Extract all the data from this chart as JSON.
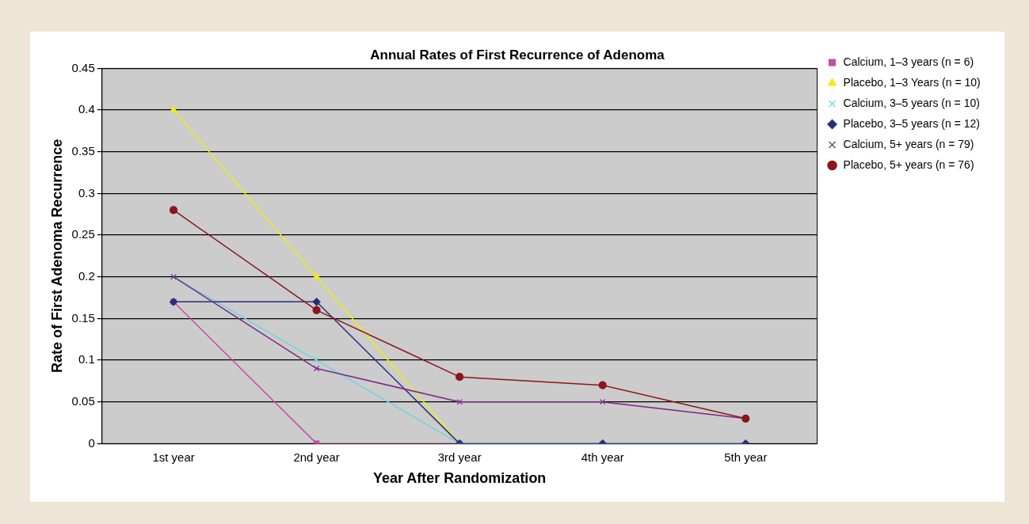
{
  "chart_data": {
    "type": "line",
    "title": "Annual Rates of First Recurrence of Adenoma",
    "xlabel": "Year After Randomization",
    "ylabel": "Rate of First Adenoma Recurrence",
    "categories": [
      "1st year",
      "2nd year",
      "3rd year",
      "4th year",
      "5th year"
    ],
    "ylim": [
      0,
      0.45
    ],
    "yticks": [
      0,
      0.05,
      0.1,
      0.15,
      0.2,
      0.25,
      0.3,
      0.35,
      0.4,
      0.45
    ],
    "grid": "y",
    "legend": "right",
    "line_style": "solid",
    "series": [
      {
        "name": "Calcium, 1–3 years (n = 6)",
        "color": "#c0509e",
        "marker": "square",
        "values": [
          0.17,
          0,
          0,
          null,
          null
        ]
      },
      {
        "name": "Placebo, 1–3 Years (n = 10)",
        "color": "#f2ea1a",
        "marker": "triangle",
        "values": [
          0.4,
          0.2,
          0,
          null,
          null
        ]
      },
      {
        "name": "Calcium, 3–5 years (n = 10)",
        "color": "#6fd3e6",
        "marker": "cross",
        "values": [
          0.2,
          0.1,
          0,
          0,
          0
        ]
      },
      {
        "name": "Placebo, 3–5 years (n = 12)",
        "color": "#262f7e",
        "marker": "diamond",
        "values": [
          0.17,
          0.17,
          0,
          0,
          0
        ]
      },
      {
        "name": "Calcium, 5+ years (n = 79)",
        "color": "#7c2a86",
        "marker": "cross",
        "values": [
          0.2,
          0.09,
          0.05,
          0.05,
          0.03
        ]
      },
      {
        "name": "Placebo, 5+ years (n = 76)",
        "color": "#8b1518",
        "marker": "circle",
        "values": [
          0.28,
          0.16,
          0.08,
          0.07,
          0.03
        ]
      }
    ]
  }
}
